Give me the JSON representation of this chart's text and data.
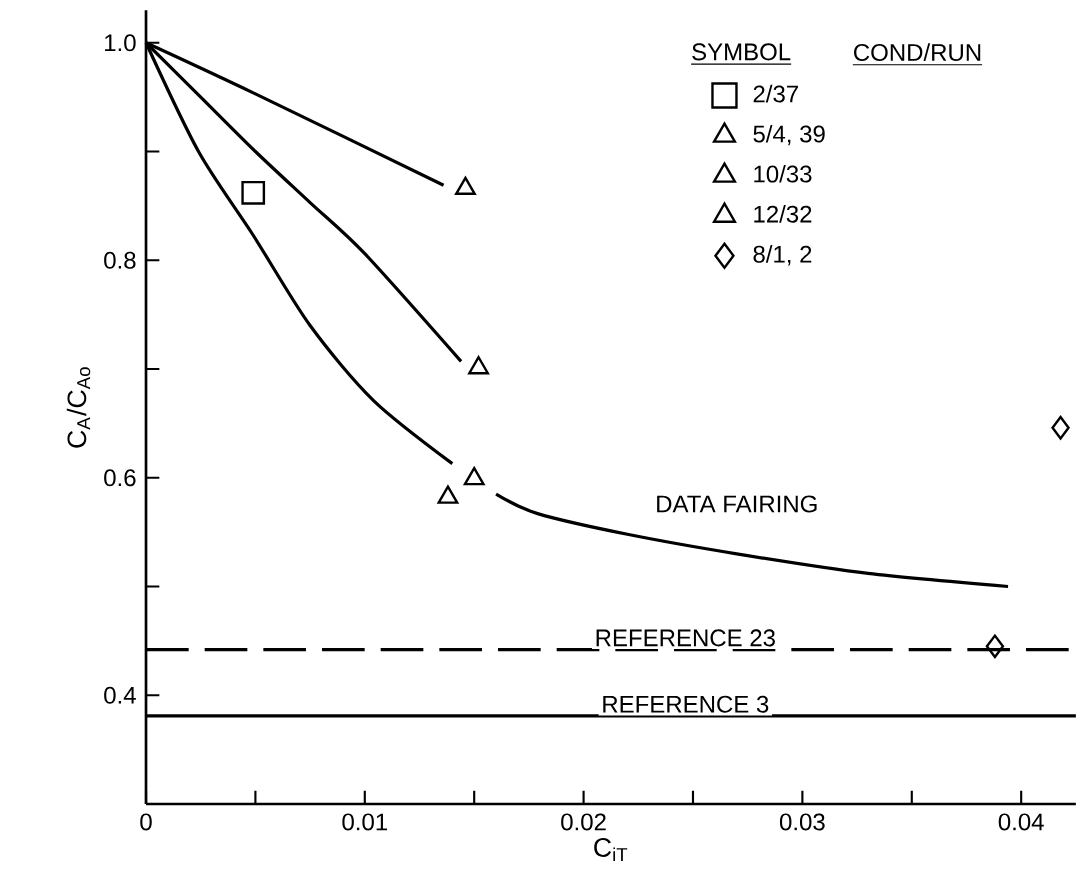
{
  "chart_data": {
    "type": "line",
    "xlabel": "C$_{iT}$",
    "ylabel": "C$_{A}$/C$_{Ao}$",
    "legend": "top right",
    "legend_title": "SYMBOL",
    "annotations": [
      "COND/RUN"
    ],
    "xlim": [
      0,
      0.0425
    ],
    "ylim": [
      0.3,
      1.03
    ],
    "xticks": [
      0,
      {
        "value": 0.005,
        "label": null
      },
      0.01,
      {
        "value": 0.015,
        "label": null
      },
      0.02,
      {
        "value": 0.025,
        "label": null
      },
      0.03,
      {
        "value": 0.035,
        "label": null
      },
      0.04
    ],
    "yticks": [
      0.4,
      {
        "value": 0.5,
        "label": null
      },
      0.6,
      {
        "value": 0.7,
        "label": null
      },
      0.8,
      {
        "value": 0.9,
        "label": null
      },
      {
        "value": 1.0,
        "label": "1.0"
      }
    ],
    "grid": false,
    "ref_lines": [
      {
        "axis": "y",
        "value": 0.442,
        "label": "REFERENCE 23",
        "color": "#000000",
        "line_style": "dashed"
      },
      {
        "axis": "y",
        "value": 0.381,
        "label": "REFERENCE 3",
        "color": "#000000",
        "line_style": "solid"
      }
    ],
    "series": [
      {
        "color": "#000000",
        "x": [
          0,
          0.005,
          0.0136
        ],
        "values": [
          1.0,
          0.953,
          0.869
        ]
      },
      {
        "color": "#000000",
        "x": [
          0,
          0.0025,
          0.005,
          0.0075,
          0.01,
          0.0144
        ],
        "values": [
          1.0,
          0.95,
          0.9,
          0.853,
          0.806,
          0.707
        ]
      },
      {
        "name": "DATA FAIRING",
        "color": "#000000",
        "x": [
          0,
          0.0024,
          0.0049,
          0.0075,
          0.0104,
          0.014,
          0.015,
          0.016,
          0.0179,
          0.022,
          0.027,
          0.033,
          0.0394
        ],
        "values": [
          1.0,
          0.9,
          0.823,
          0.74,
          0.671,
          0.613,
          null,
          0.585,
          0.567,
          0.548,
          0.53,
          0.512,
          0.5
        ]
      },
      {
        "type": "scatter",
        "name": "2/37",
        "marker": "square",
        "color": "#000000",
        "x": [
          0.0049
        ],
        "values": [
          0.862
        ]
      },
      {
        "type": "scatter",
        "name": "5/4, 39",
        "marker": "triangle",
        "color": "#000000",
        "x": [
          0.0138,
          0.015
        ],
        "values": [
          0.582,
          0.599
        ]
      },
      {
        "type": "scatter",
        "name": "10/33",
        "marker": "triangle",
        "color": "#000000",
        "x": [
          0.0152
        ],
        "values": [
          0.701
        ]
      },
      {
        "type": "scatter",
        "name": "12/32",
        "marker": "triangle",
        "color": "#000000",
        "x": [
          0.0146
        ],
        "values": [
          0.866
        ]
      },
      {
        "type": "scatter",
        "name": "8/1, 2",
        "marker": "diamond",
        "color": "#000000",
        "x": [
          0.0388,
          0.0418
        ],
        "values": [
          0.445,
          0.646
        ]
      }
    ]
  }
}
